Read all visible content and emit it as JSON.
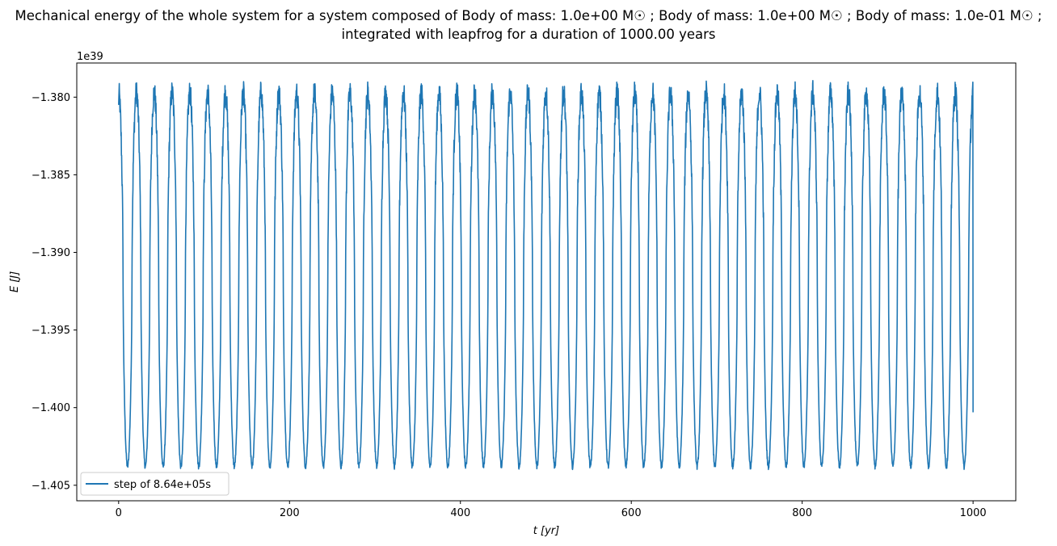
{
  "chart_data": {
    "type": "line",
    "title_line1": "Mechanical energy of the whole system for a system composed of Body of mass: 1.0e+00 M☉ ; Body of mass: 1.0e+00 M☉ ; Body of mass: 1.0e-01 M☉ ;",
    "title_line2": "integrated with leapfrog for a duration of 1000.00 years",
    "xlabel": "t [yr]",
    "ylabel": "E [J]",
    "y_offset_label": "1e39",
    "xlim": [
      -49,
      1050
    ],
    "ylim": [
      -1.406,
      -1.3778
    ],
    "x_ticks": [
      0,
      200,
      400,
      600,
      800,
      1000
    ],
    "y_ticks": [
      -1.38,
      -1.385,
      -1.39,
      -1.395,
      -1.4,
      -1.405
    ],
    "x_tick_labels": [
      "0",
      "200",
      "400",
      "600",
      "800",
      "1000"
    ],
    "y_tick_labels": [
      "−1.380",
      "−1.385",
      "−1.390",
      "−1.395",
      "−1.400",
      "−1.405"
    ],
    "legend_position": "lower-left",
    "series": [
      {
        "name": "step of 8.64e+05s",
        "color": "#1f77b4",
        "x_range": [
          0,
          1000
        ],
        "y_start": -1.3805,
        "y_end": -1.4003,
        "y_max": -1.3788,
        "y_min": -1.4047,
        "cycles": 48
      }
    ]
  }
}
